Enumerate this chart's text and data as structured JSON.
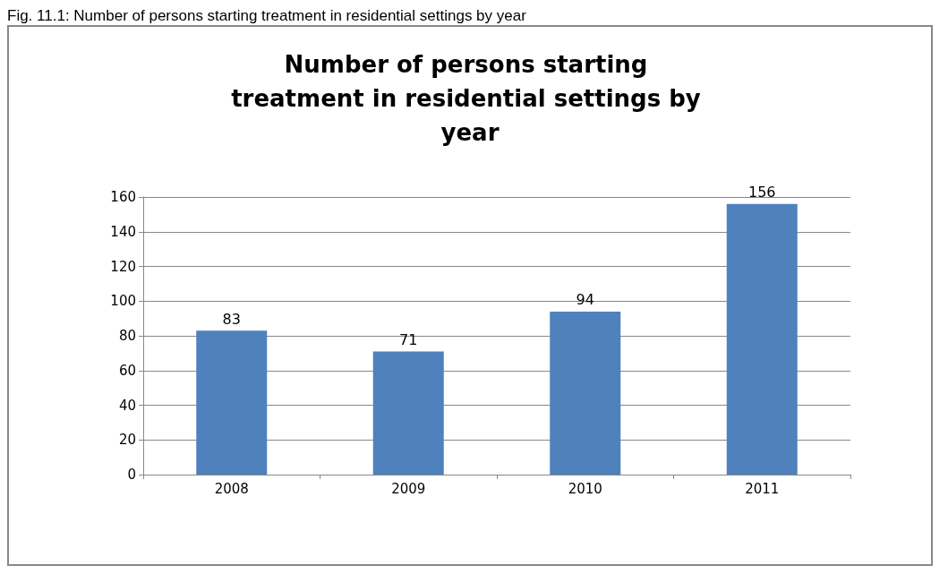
{
  "chart_data": {
    "type": "bar",
    "title": "Number of persons starting treatment in residential settings by year",
    "annotations": [
      "Fig. 11.1: Number of persons starting treatment in residential settings by year"
    ],
    "categories": [
      "2008",
      "2009",
      "2010",
      "2011"
    ],
    "values": [
      83,
      71,
      94,
      156
    ],
    "color": "#4f81bd",
    "data_labels": true,
    "ylim": [
      0,
      160
    ],
    "yticks": [
      0,
      20,
      40,
      60,
      80,
      100,
      120,
      140,
      160
    ],
    "grid": "y"
  }
}
